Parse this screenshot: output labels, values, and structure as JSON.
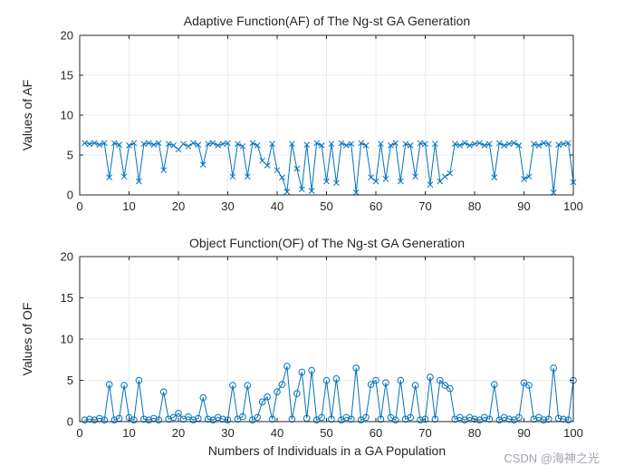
{
  "figure": {
    "background": "#ffffff",
    "line_color": "#0072BD",
    "axis_color": "#262626",
    "grid_color": "#ececec",
    "tick_font_size": 13,
    "label_font_size": 14
  },
  "watermark": {
    "text": "CSDN @海神之光",
    "color": "#a3a3b3"
  },
  "chart_data": [
    {
      "type": "line",
      "title": "Adaptive Function(AF) of The Ng-st GA Generation",
      "xlabel": "",
      "ylabel": "Values of AF",
      "marker": "x",
      "xlim": [
        0,
        100
      ],
      "ylim": [
        0,
        20
      ],
      "xticks": [
        0,
        10,
        20,
        30,
        40,
        50,
        60,
        70,
        80,
        90,
        100
      ],
      "yticks": [
        0,
        5,
        10,
        15,
        20
      ],
      "grid": true,
      "x_start": 1,
      "x_step": 1,
      "y": [
        6.5,
        6.4,
        6.5,
        6.3,
        6.5,
        2.2,
        6.5,
        6.3,
        2.3,
        6.2,
        6.5,
        1.7,
        6.4,
        6.5,
        6.3,
        6.5,
        3.1,
        6.4,
        6.2,
        5.7,
        6.4,
        6.1,
        6.5,
        6.3,
        3.8,
        6.4,
        6.5,
        6.2,
        6.4,
        6.5,
        2.3,
        6.4,
        6.1,
        2.3,
        6.5,
        6.2,
        4.3,
        3.7,
        6.4,
        3.1,
        2.2,
        0.4,
        6.4,
        3.3,
        0.7,
        6.3,
        0.5,
        6.5,
        6.2,
        1.7,
        6.4,
        1.5,
        6.5,
        6.2,
        6.4,
        0.3,
        6.5,
        6.2,
        2.2,
        1.7,
        6.4,
        2.0,
        6.2,
        6.5,
        1.7,
        6.4,
        6.2,
        2.3,
        6.5,
        6.4,
        1.3,
        6.4,
        1.7,
        2.3,
        2.7,
        6.4,
        6.2,
        6.5,
        6.2,
        6.4,
        6.5,
        6.2,
        6.4,
        2.2,
        6.5,
        6.2,
        6.4,
        6.5,
        6.2,
        2.0,
        2.3,
        6.4,
        6.2,
        6.5,
        6.4,
        0.3,
        6.3,
        6.4,
        6.5,
        1.6
      ]
    },
    {
      "type": "line",
      "title": "Object Function(OF) of The Ng-st GA Generation",
      "xlabel": "Numbers of Individuals in a GA Population",
      "ylabel": "Values of OF",
      "marker": "o",
      "xlim": [
        0,
        100
      ],
      "ylim": [
        0,
        20
      ],
      "xticks": [
        0,
        10,
        20,
        30,
        40,
        50,
        60,
        70,
        80,
        90,
        100
      ],
      "yticks": [
        0,
        5,
        10,
        15,
        20
      ],
      "grid": true,
      "x_start": 1,
      "x_step": 1,
      "y": [
        0.2,
        0.3,
        0.2,
        0.4,
        0.2,
        4.5,
        0.2,
        0.4,
        4.4,
        0.5,
        0.2,
        5.0,
        0.3,
        0.2,
        0.4,
        0.2,
        3.6,
        0.3,
        0.5,
        1.0,
        0.3,
        0.6,
        0.2,
        0.4,
        2.9,
        0.3,
        0.2,
        0.5,
        0.3,
        0.2,
        4.4,
        0.3,
        0.6,
        4.4,
        0.2,
        0.5,
        2.4,
        3.0,
        0.3,
        3.6,
        4.5,
        6.7,
        0.3,
        3.4,
        6.0,
        0.4,
        6.2,
        0.2,
        0.5,
        5.0,
        0.3,
        5.2,
        0.2,
        0.5,
        0.3,
        6.5,
        0.2,
        0.5,
        4.5,
        5.0,
        0.3,
        4.7,
        0.5,
        0.2,
        5.0,
        0.3,
        0.5,
        4.4,
        0.2,
        0.3,
        5.4,
        0.3,
        5.0,
        4.4,
        4.0,
        0.3,
        0.5,
        0.2,
        0.5,
        0.3,
        0.2,
        0.5,
        0.3,
        4.5,
        0.2,
        0.5,
        0.3,
        0.2,
        0.5,
        4.7,
        4.4,
        0.3,
        0.5,
        0.2,
        0.3,
        6.5,
        0.4,
        0.3,
        0.2,
        5.0
      ]
    }
  ]
}
